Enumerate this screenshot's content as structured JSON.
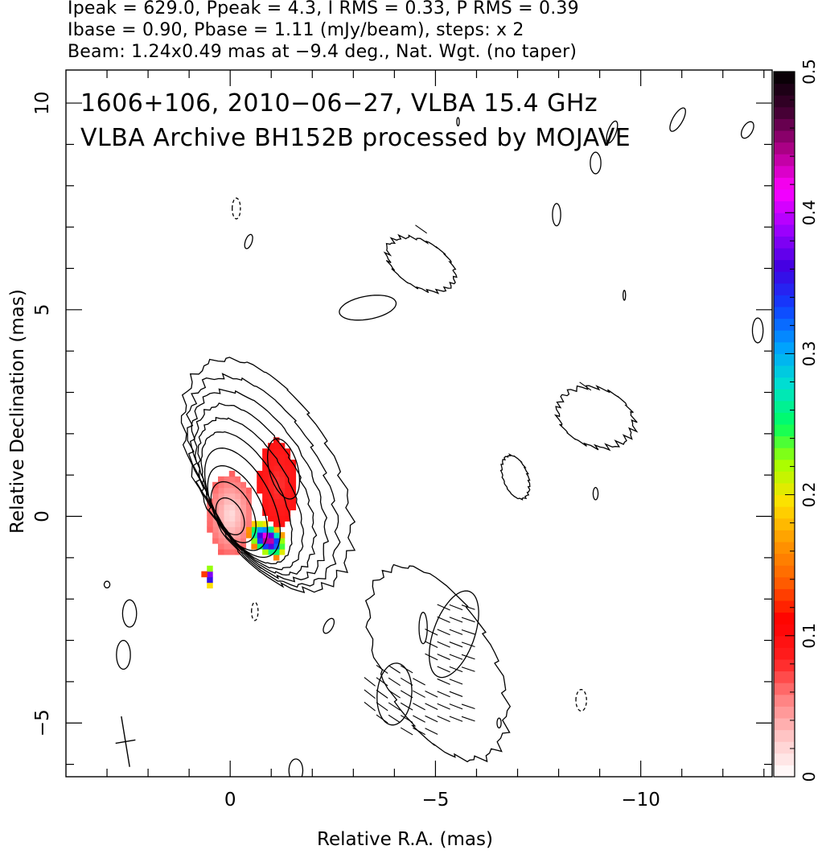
{
  "header": {
    "line1": "Ipeak = 629.0, Ppeak = 4.3, I RMS = 0.33, P RMS = 0.39",
    "line2": "Ibase = 0.90, Pbase = 1.11 (mJy/beam), steps: x 2",
    "line3": "Beam: 1.24x0.49 mas at −9.4 deg., Nat. Wgt. (no taper)"
  },
  "annotations": {
    "line1": "1606+106, 2010−06−27, VLBA 15.4 GHz",
    "line2": "VLBA Archive BH152B processed by MOJAVE"
  },
  "chart_data": {
    "type": "heatmap",
    "xlabel": "Relative R.A. (mas)",
    "ylabel": "Relative Declination (mas)",
    "xlim": [
      4,
      -13.2
    ],
    "ylim": [
      -6.3,
      10.8
    ],
    "x_ticks": [
      0,
      -5,
      -10
    ],
    "x_tick_labels": [
      "0",
      "−5",
      "−10"
    ],
    "y_ticks": [
      -5,
      0,
      5,
      10
    ],
    "y_tick_labels": [
      "−5",
      "0",
      "5",
      "10"
    ],
    "colorbar": {
      "range": [
        0,
        0.5
      ],
      "ticks": [
        0,
        0.1,
        0.2,
        0.3,
        0.4,
        0.5
      ],
      "tick_labels": [
        "0",
        "0.1",
        "0.2",
        "0.3",
        "0.4",
        "0.5"
      ],
      "colors": [
        "#ffffff",
        "#ffc8c8",
        "#ff8080",
        "#ff2020",
        "#ff0000",
        "#ff6000",
        "#ff9900",
        "#ffe000",
        "#a8ff00",
        "#00ff60",
        "#00e0d0",
        "#00a0ff",
        "#1040ff",
        "#4000e0",
        "#a000ff",
        "#ff00ff",
        "#b0008a",
        "#400030",
        "#000000"
      ]
    },
    "peak_position": [
      0,
      0
    ],
    "contour_levels_mjy_per_beam": [
      0.9,
      1.8,
      3.6,
      7.2,
      14.4,
      28.8,
      57.6,
      115.2,
      230.4,
      460.8
    ],
    "beam": {
      "major": 1.24,
      "minor": 0.49,
      "pa_deg": -9.4
    },
    "grid": false
  }
}
